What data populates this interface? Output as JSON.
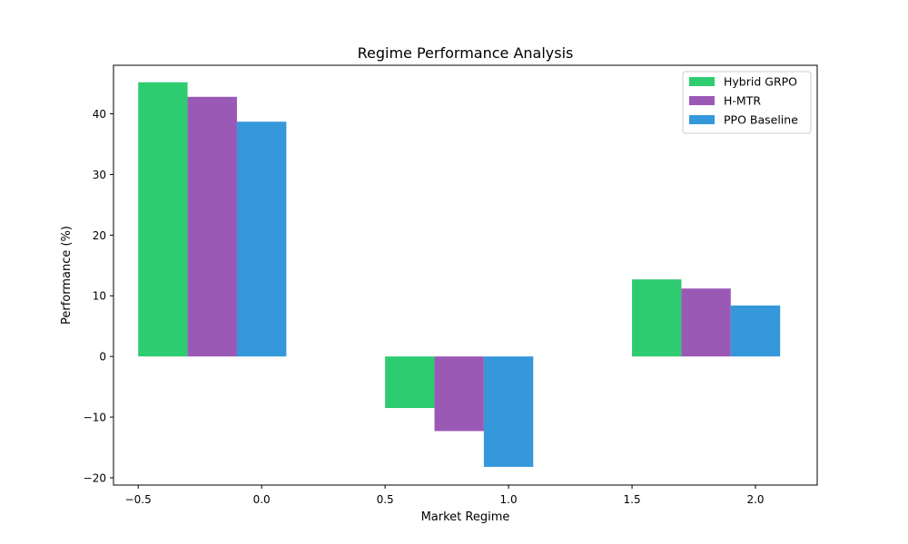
{
  "chart_data": {
    "type": "bar",
    "title": "Regime Performance Analysis",
    "xlabel": "Market Regime",
    "ylabel": "Performance (%)",
    "xlim": [
      -0.6,
      2.25
    ],
    "ylim": [
      -21.2,
      48.0
    ],
    "x_ticks": [
      -0.5,
      0.0,
      0.5,
      1.0,
      1.5,
      2.0
    ],
    "x_tick_labels": [
      "−0.5",
      "0.0",
      "0.5",
      "1.0",
      "1.5",
      "2.0"
    ],
    "y_ticks": [
      -20,
      -10,
      0,
      10,
      20,
      30,
      40
    ],
    "y_tick_labels": [
      "−20",
      "−10",
      "0",
      "10",
      "20",
      "30",
      "40"
    ],
    "bar_width": 0.2,
    "group_centers": [
      -0.2,
      0.8,
      1.8
    ],
    "legend_position": "top-right",
    "series": [
      {
        "name": "Hybrid GRPO",
        "color": "#2ecc71",
        "values": [
          45.2,
          -8.5,
          12.7
        ]
      },
      {
        "name": "H-MTR",
        "color": "#9b59b6",
        "values": [
          42.8,
          -12.3,
          11.2
        ]
      },
      {
        "name": "PPO Baseline",
        "color": "#3498db",
        "values": [
          38.7,
          -18.2,
          8.4
        ]
      }
    ]
  }
}
